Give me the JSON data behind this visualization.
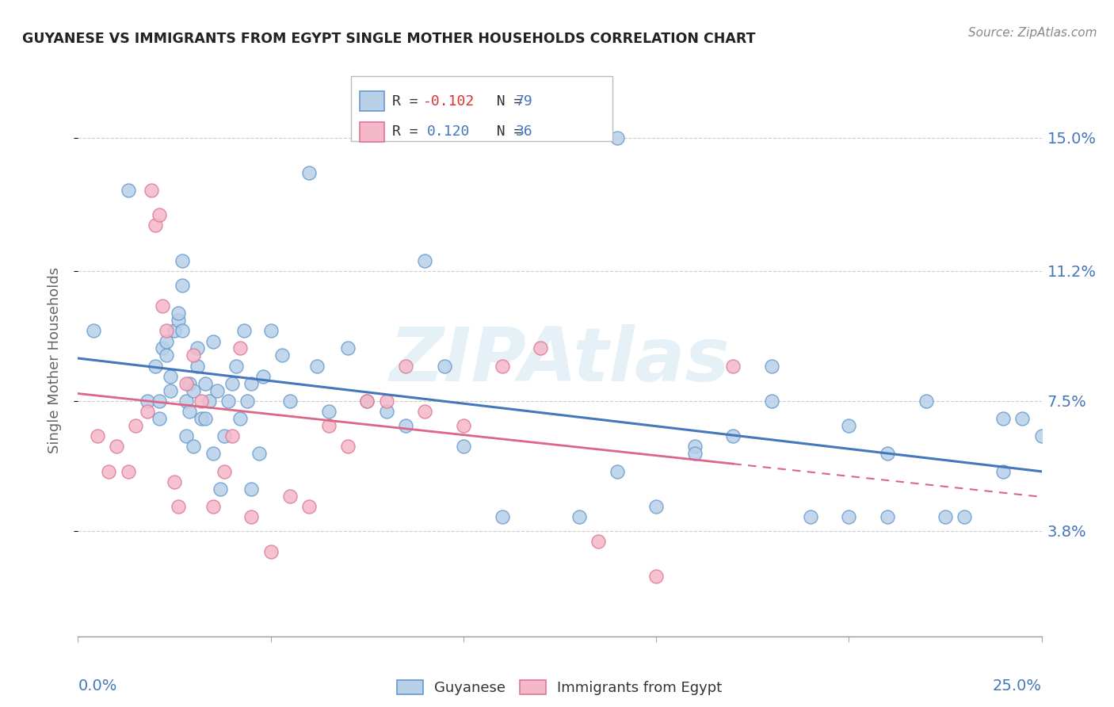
{
  "title": "GUYANESE VS IMMIGRANTS FROM EGYPT SINGLE MOTHER HOUSEHOLDS CORRELATION CHART",
  "source": "Source: ZipAtlas.com",
  "ylabel": "Single Mother Households",
  "ytick_labels": [
    "3.8%",
    "7.5%",
    "11.2%",
    "15.0%"
  ],
  "ytick_values": [
    3.8,
    7.5,
    11.2,
    15.0
  ],
  "xlim": [
    0.0,
    25.0
  ],
  "ylim": [
    0.8,
    16.5
  ],
  "color_guyanese_fill": "#b8d0e8",
  "color_guyanese_edge": "#6699cc",
  "color_egypt_fill": "#f5b8c8",
  "color_egypt_edge": "#dd7799",
  "color_line_guyanese": "#4477bb",
  "color_line_egypt": "#dd6688",
  "watermark": "ZIPAtlas",
  "guyanese_x": [
    0.4,
    1.3,
    1.8,
    2.0,
    2.1,
    2.1,
    2.2,
    2.3,
    2.3,
    2.4,
    2.4,
    2.5,
    2.6,
    2.6,
    2.7,
    2.7,
    2.7,
    2.8,
    2.8,
    2.9,
    2.9,
    3.0,
    3.0,
    3.1,
    3.1,
    3.2,
    3.3,
    3.3,
    3.4,
    3.5,
    3.5,
    3.6,
    3.7,
    3.8,
    3.9,
    4.0,
    4.1,
    4.2,
    4.3,
    4.4,
    4.5,
    4.5,
    4.7,
    4.8,
    5.0,
    5.3,
    5.5,
    6.0,
    6.2,
    6.5,
    7.0,
    7.5,
    8.0,
    8.5,
    9.0,
    9.5,
    10.0,
    11.0,
    13.0,
    14.0,
    15.0,
    16.0,
    17.0,
    18.0,
    19.0,
    20.0,
    21.0,
    22.0,
    23.0,
    24.0,
    24.5,
    14.0,
    16.0,
    18.0,
    20.0,
    21.0,
    22.5,
    24.0,
    25.0
  ],
  "guyanese_y": [
    9.5,
    13.5,
    7.5,
    8.5,
    7.0,
    7.5,
    9.0,
    8.8,
    9.2,
    7.8,
    8.2,
    9.5,
    9.8,
    10.0,
    11.5,
    10.8,
    9.5,
    6.5,
    7.5,
    7.2,
    8.0,
    7.8,
    6.2,
    8.5,
    9.0,
    7.0,
    8.0,
    7.0,
    7.5,
    9.2,
    6.0,
    7.8,
    5.0,
    6.5,
    7.5,
    8.0,
    8.5,
    7.0,
    9.5,
    7.5,
    8.0,
    5.0,
    6.0,
    8.2,
    9.5,
    8.8,
    7.5,
    14.0,
    8.5,
    7.2,
    9.0,
    7.5,
    7.2,
    6.8,
    11.5,
    8.5,
    6.2,
    4.2,
    4.2,
    5.5,
    4.5,
    6.2,
    6.5,
    7.5,
    4.2,
    6.8,
    6.0,
    7.5,
    4.2,
    5.5,
    7.0,
    15.0,
    6.0,
    8.5,
    4.2,
    4.2,
    4.2,
    7.0,
    6.5
  ],
  "egypt_x": [
    0.5,
    0.8,
    1.0,
    1.3,
    1.5,
    1.8,
    1.9,
    2.0,
    2.1,
    2.2,
    2.3,
    2.5,
    2.6,
    2.8,
    3.0,
    3.2,
    3.5,
    3.8,
    4.0,
    4.2,
    4.5,
    5.0,
    5.5,
    6.0,
    6.5,
    7.0,
    7.5,
    8.0,
    8.5,
    9.0,
    10.0,
    11.0,
    12.0,
    13.5,
    15.0,
    17.0
  ],
  "egypt_y": [
    6.5,
    5.5,
    6.2,
    5.5,
    6.8,
    7.2,
    13.5,
    12.5,
    12.8,
    10.2,
    9.5,
    5.2,
    4.5,
    8.0,
    8.8,
    7.5,
    4.5,
    5.5,
    6.5,
    9.0,
    4.2,
    3.2,
    4.8,
    4.5,
    6.8,
    6.2,
    7.5,
    7.5,
    8.5,
    7.2,
    6.8,
    8.5,
    9.0,
    3.5,
    2.5,
    8.5
  ]
}
